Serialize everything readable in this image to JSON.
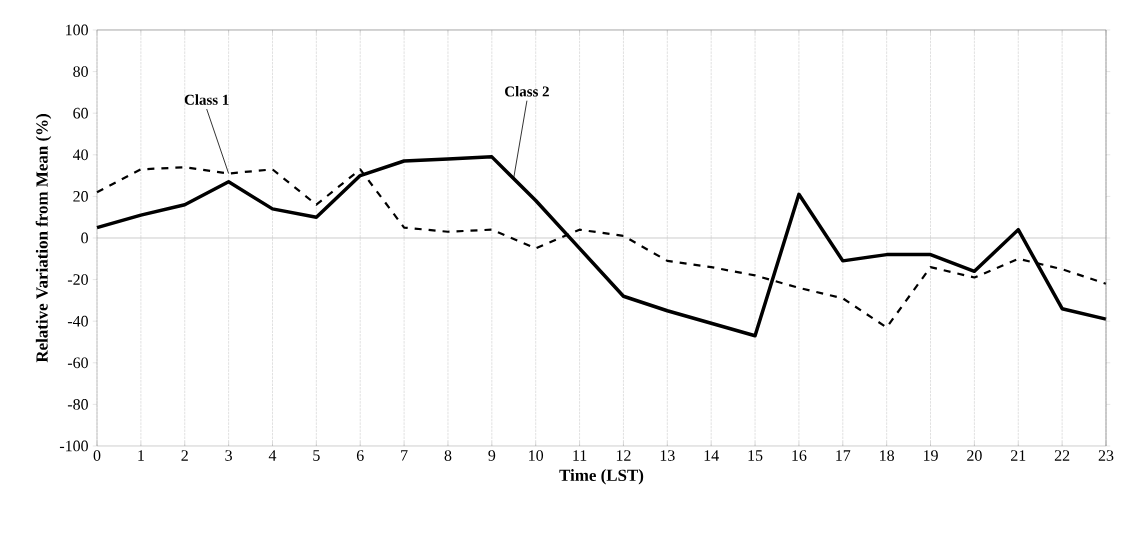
{
  "chart_data": {
    "type": "line",
    "xlabel": "Time (LST)",
    "ylabel": "Relative Variation from Mean (%)",
    "x": [
      0,
      1,
      2,
      3,
      4,
      5,
      6,
      7,
      8,
      9,
      10,
      11,
      12,
      13,
      14,
      15,
      16,
      17,
      18,
      19,
      20,
      21,
      22,
      23
    ],
    "series": [
      {
        "name": "Class 1",
        "color": "#000000",
        "line_style": "dashed",
        "values": [
          22,
          33,
          34,
          31,
          33,
          16,
          33,
          5,
          3,
          4,
          -5,
          4,
          1,
          -11,
          -14,
          -18,
          -24,
          -29,
          -43,
          -14,
          -19,
          -10,
          -15,
          -22
        ]
      },
      {
        "name": "Class 2",
        "color": "#000000",
        "line_style": "solid",
        "values": [
          5,
          11,
          16,
          27,
          14,
          10,
          30,
          37,
          38,
          39,
          18,
          -5,
          -28,
          -35,
          -41,
          -47,
          21,
          -11,
          -8,
          -8,
          -16,
          4,
          -34,
          -39
        ]
      }
    ],
    "xlim": [
      0,
      23
    ],
    "ylim": [
      -100,
      100
    ],
    "xticks": [
      0,
      1,
      2,
      3,
      4,
      5,
      6,
      7,
      8,
      9,
      10,
      11,
      12,
      13,
      14,
      15,
      16,
      17,
      18,
      19,
      20,
      21,
      22,
      23
    ],
    "yticks": [
      -100,
      -80,
      -60,
      -40,
      -20,
      0,
      20,
      40,
      60,
      80,
      100
    ],
    "grid": "x",
    "marker": "none",
    "ref_lines": [
      {
        "axis": "y",
        "value": 0,
        "color": "#808080"
      }
    ]
  }
}
